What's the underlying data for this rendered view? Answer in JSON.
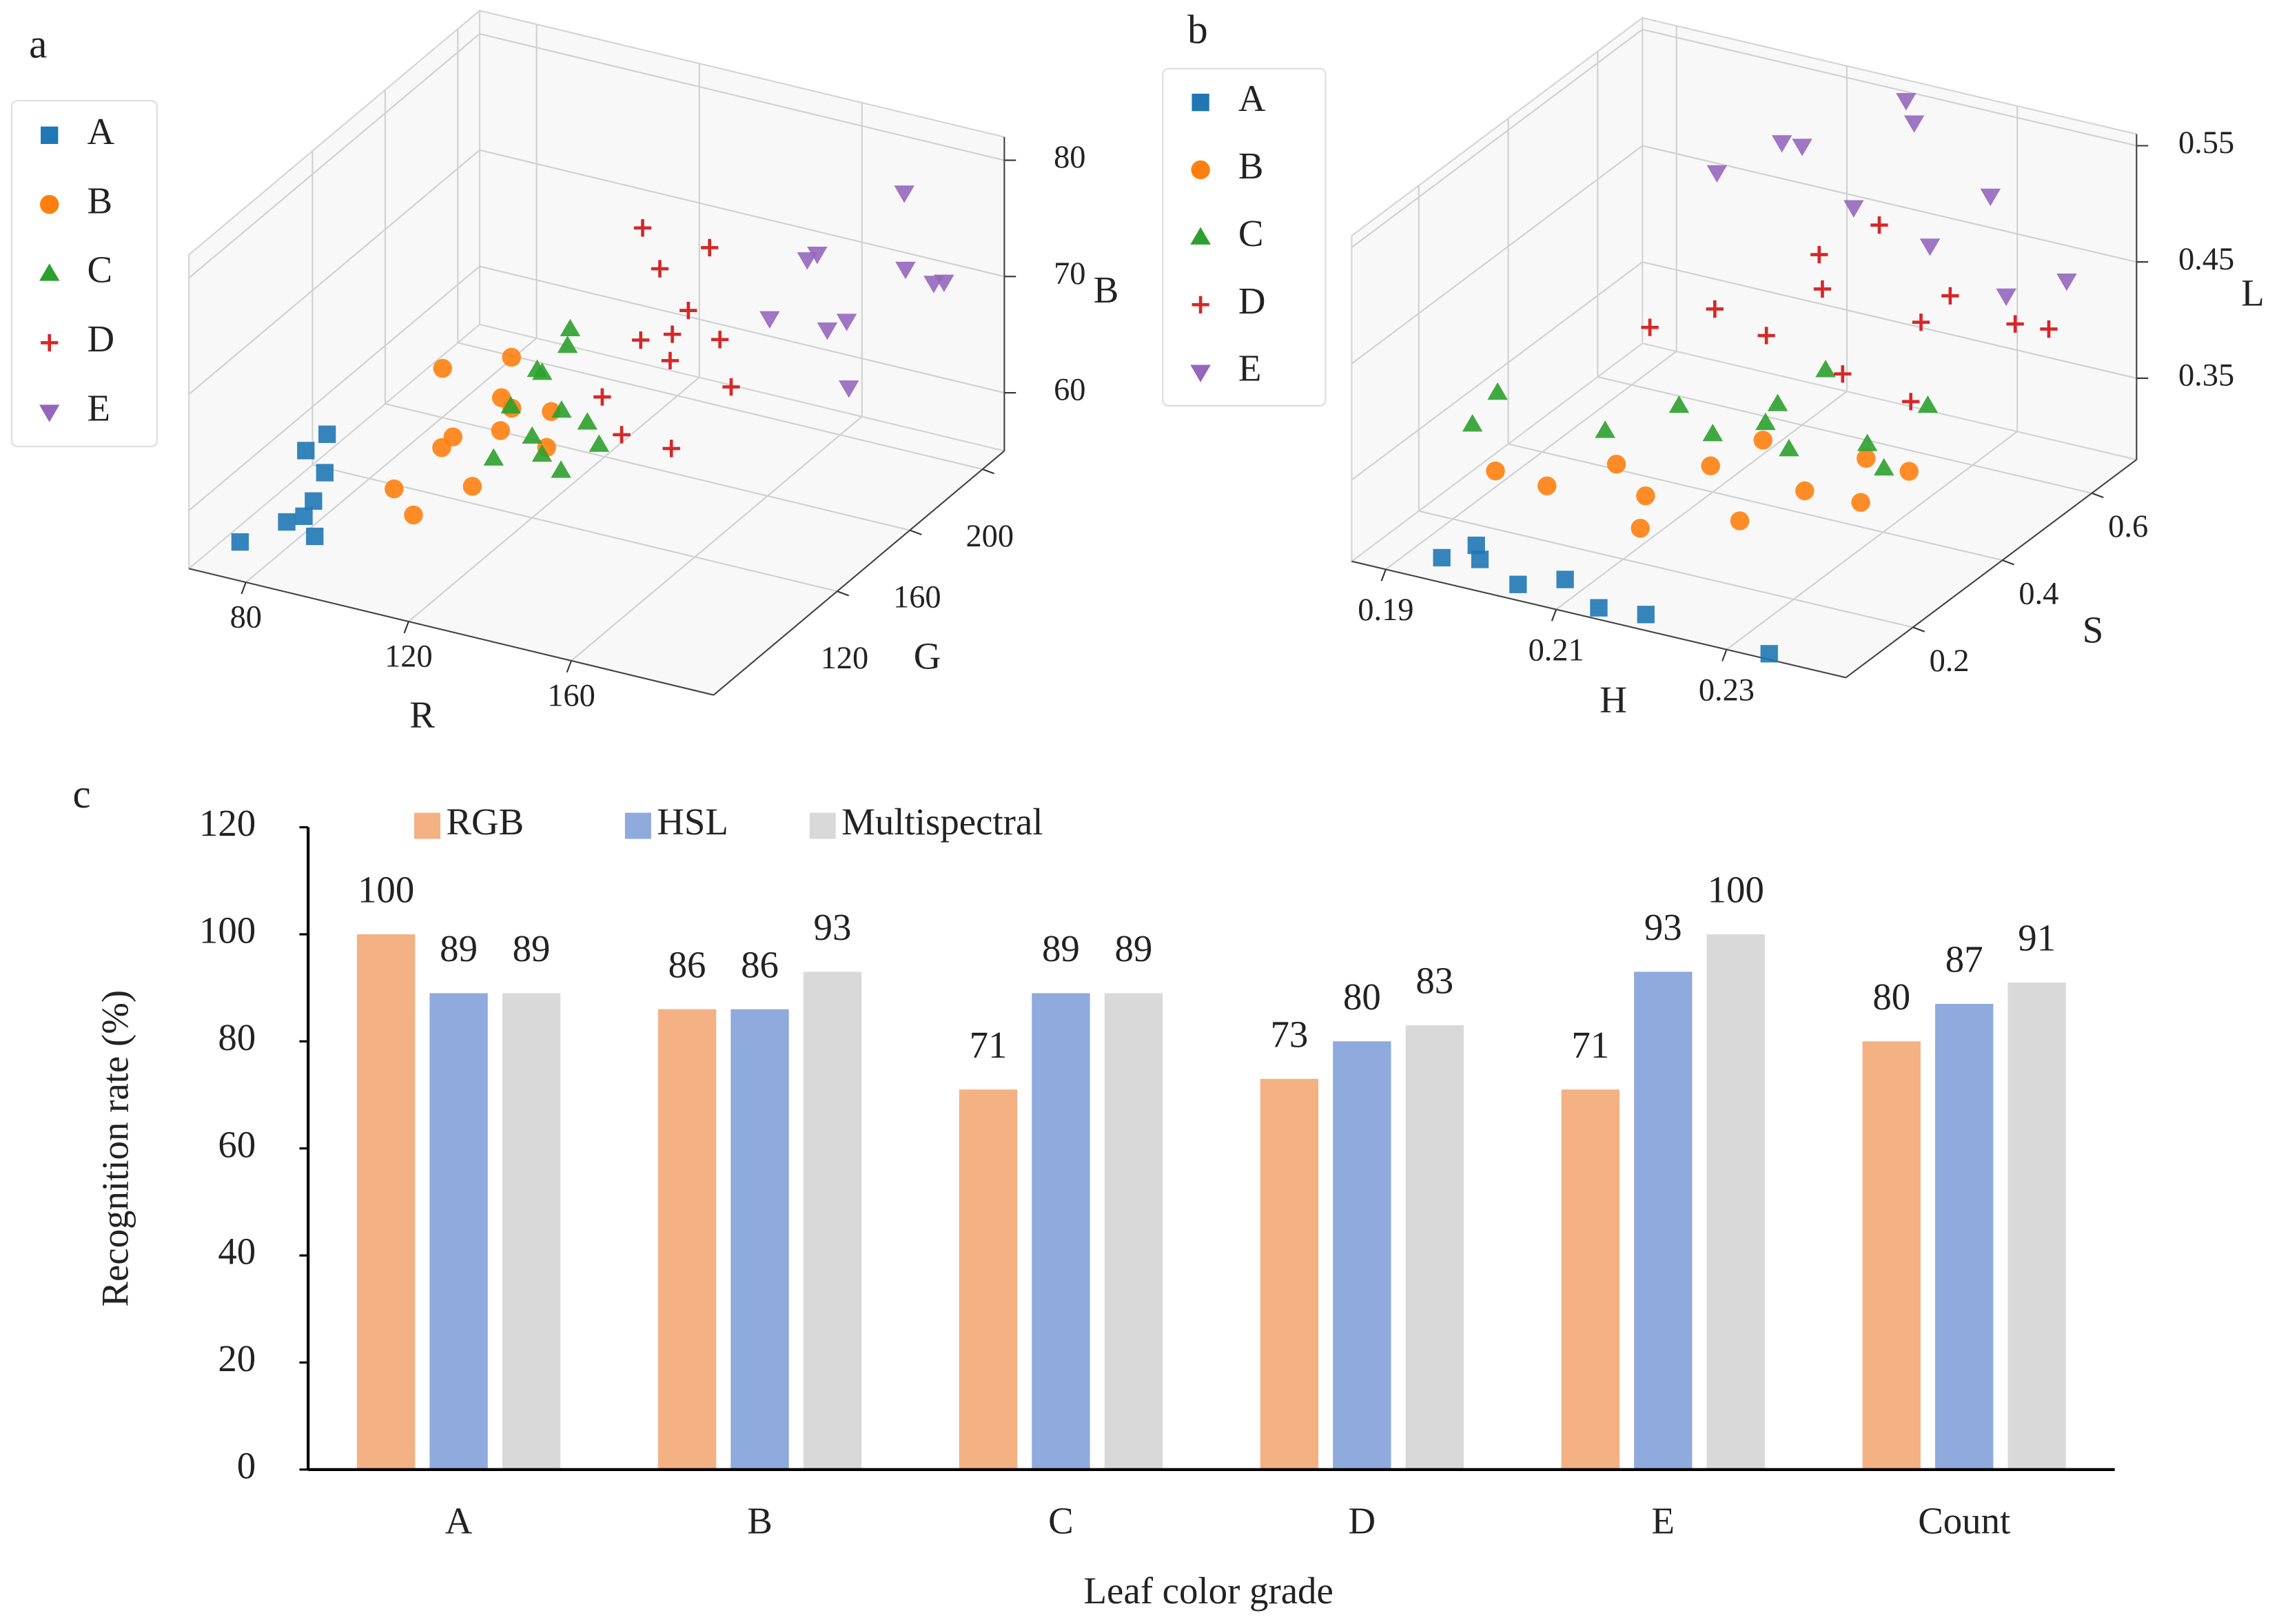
{
  "chart_data": [
    {
      "type": "scatter3d",
      "panel_label": "a",
      "xlabel": "R",
      "ylabel": "G",
      "zlabel": "B",
      "xlim": [
        66,
        195
      ],
      "ylim": [
        52,
        212
      ],
      "zlim": [
        55,
        82
      ],
      "xticks": [
        80,
        120,
        160
      ],
      "yticks": [
        120,
        160,
        200
      ],
      "zticks": [
        60,
        70,
        80
      ],
      "series": [
        {
          "name": "A",
          "color": "#1f77b4",
          "marker": "s",
          "x": [
            75,
            82,
            85,
            86,
            84,
            88,
            80,
            83
          ],
          "y": [
            60,
            70,
            78,
            82,
            75,
            72,
            85,
            90
          ],
          "z": [
            57,
            58,
            59,
            61,
            58,
            57,
            62,
            63
          ]
        },
        {
          "name": "B",
          "color": "#ff7f0e",
          "marker": "o",
          "x": [
            95,
            100,
            105,
            110,
            115,
            108,
            98,
            112,
            118,
            102,
            120,
            106
          ],
          "y": [
            100,
            115,
            110,
            125,
            120,
            130,
            120,
            105,
            135,
            95,
            128,
            140
          ],
          "z": [
            58,
            60,
            62,
            61,
            64,
            63,
            66,
            59,
            62,
            57,
            60,
            65
          ]
        },
        {
          "name": "C",
          "color": "#2ca02c",
          "marker": "^",
          "x": [
            115,
            120,
            125,
            118,
            128,
            122,
            130,
            117,
            124,
            126,
            119,
            132
          ],
          "y": [
            110,
            120,
            125,
            130,
            118,
            135,
            128,
            115,
            132,
            112,
            125,
            130
          ],
          "z": [
            61,
            62,
            64,
            66,
            60,
            68,
            63,
            65,
            70,
            62,
            67,
            61
          ]
        },
        {
          "name": "D",
          "color": "#d62728",
          "marker": "+",
          "x": [
            135,
            140,
            145,
            150,
            138,
            155,
            142,
            148,
            160,
            136,
            152,
            145
          ],
          "y": [
            125,
            135,
            140,
            130,
            150,
            145,
            120,
            155,
            140,
            145,
            125,
            150
          ],
          "z": [
            66,
            70,
            68,
            72,
            74,
            70,
            64,
            76,
            67,
            78,
            63,
            71
          ]
        },
        {
          "name": "E",
          "color": "#9467bd",
          "marker": "v",
          "x": [
            165,
            170,
            175,
            180,
            185,
            178,
            190,
            168,
            172,
            183
          ],
          "y": [
            150,
            165,
            170,
            160,
            180,
            195,
            190,
            175,
            155,
            200
          ],
          "z": [
            72,
            76,
            70,
            66,
            74,
            78,
            72,
            68,
            77,
            70
          ]
        }
      ]
    },
    {
      "type": "scatter3d",
      "panel_label": "b",
      "xlabel": "H",
      "ylabel": "S",
      "zlabel": "L",
      "xlim": [
        0.186,
        0.244
      ],
      "ylim": [
        0.05,
        0.7
      ],
      "zlim": [
        0.28,
        0.56
      ],
      "xticks": [
        0.19,
        0.21,
        0.23
      ],
      "yticks": [
        0.2,
        0.4,
        0.6
      ],
      "zticks": [
        0.35,
        0.45,
        0.55
      ],
      "series": [
        {
          "name": "A",
          "color": "#1f77b4",
          "marker": "s",
          "x": [
            0.195,
            0.2,
            0.205,
            0.21,
            0.215,
            0.22,
            0.235,
            0.198
          ],
          "y": [
            0.08,
            0.07,
            0.06,
            0.07,
            0.05,
            0.06,
            0.05,
            0.1
          ],
          "z": [
            0.29,
            0.3,
            0.29,
            0.3,
            0.29,
            0.29,
            0.285,
            0.3
          ]
        },
        {
          "name": "B",
          "color": "#ff7f0e",
          "marker": "o",
          "x": [
            0.2,
            0.205,
            0.21,
            0.215,
            0.22,
            0.225,
            0.23,
            0.212,
            0.218,
            0.228,
            0.232,
            0.195
          ],
          "y": [
            0.22,
            0.28,
            0.25,
            0.3,
            0.27,
            0.32,
            0.35,
            0.2,
            0.36,
            0.4,
            0.42,
            0.2
          ],
          "z": [
            0.32,
            0.33,
            0.32,
            0.34,
            0.31,
            0.33,
            0.32,
            0.31,
            0.35,
            0.34,
            0.33,
            0.33
          ]
        },
        {
          "name": "C",
          "color": "#2ca02c",
          "marker": "^",
          "x": [
            0.19,
            0.2,
            0.205,
            0.21,
            0.215,
            0.22,
            0.225,
            0.23,
            0.212,
            0.218,
            0.228,
            0.186
          ],
          "y": [
            0.3,
            0.35,
            0.42,
            0.4,
            0.45,
            0.38,
            0.46,
            0.5,
            0.48,
            0.5,
            0.44,
            0.32
          ],
          "z": [
            0.36,
            0.33,
            0.34,
            0.33,
            0.35,
            0.34,
            0.33,
            0.36,
            0.32,
            0.37,
            0.32,
            0.32
          ]
        },
        {
          "name": "D",
          "color": "#d62728",
          "marker": "+",
          "x": [
            0.205,
            0.21,
            0.215,
            0.22,
            0.225,
            0.23,
            0.2,
            0.235,
            0.212,
            0.228,
            0.218,
            0.24
          ],
          "y": [
            0.5,
            0.52,
            0.55,
            0.5,
            0.58,
            0.55,
            0.45,
            0.6,
            0.6,
            0.5,
            0.62,
            0.58
          ],
          "z": [
            0.4,
            0.38,
            0.42,
            0.37,
            0.4,
            0.44,
            0.39,
            0.41,
            0.43,
            0.36,
            0.46,
            0.42
          ]
        },
        {
          "name": "E",
          "color": "#9467bd",
          "marker": "v",
          "x": [
            0.2,
            0.205,
            0.21,
            0.215,
            0.22,
            0.225,
            0.23,
            0.235,
            0.24,
            0.218
          ],
          "y": [
            0.6,
            0.65,
            0.6,
            0.62,
            0.66,
            0.6,
            0.64,
            0.58,
            0.62,
            0.68
          ],
          "z": [
            0.48,
            0.5,
            0.52,
            0.47,
            0.54,
            0.46,
            0.5,
            0.44,
            0.45,
            0.55
          ]
        }
      ]
    },
    {
      "type": "bar",
      "panel_label": "c",
      "xlabel": "Leaf color grade",
      "ylabel": "Recognition rate (%)",
      "categories": [
        "A",
        "B",
        "C",
        "D",
        "E",
        "Count"
      ],
      "ylim": [
        0,
        120
      ],
      "yticks": [
        0,
        20,
        40,
        60,
        80,
        100,
        120
      ],
      "series": [
        {
          "name": "RGB",
          "color": "#f4b183",
          "values": [
            100,
            86,
            71,
            73,
            71,
            80
          ]
        },
        {
          "name": "HSL",
          "color": "#8faadc",
          "values": [
            89,
            86,
            89,
            80,
            93,
            87
          ]
        },
        {
          "name": "Multispectral",
          "color": "#d9d9d9",
          "values": [
            89,
            93,
            89,
            83,
            100,
            91
          ]
        }
      ]
    }
  ]
}
